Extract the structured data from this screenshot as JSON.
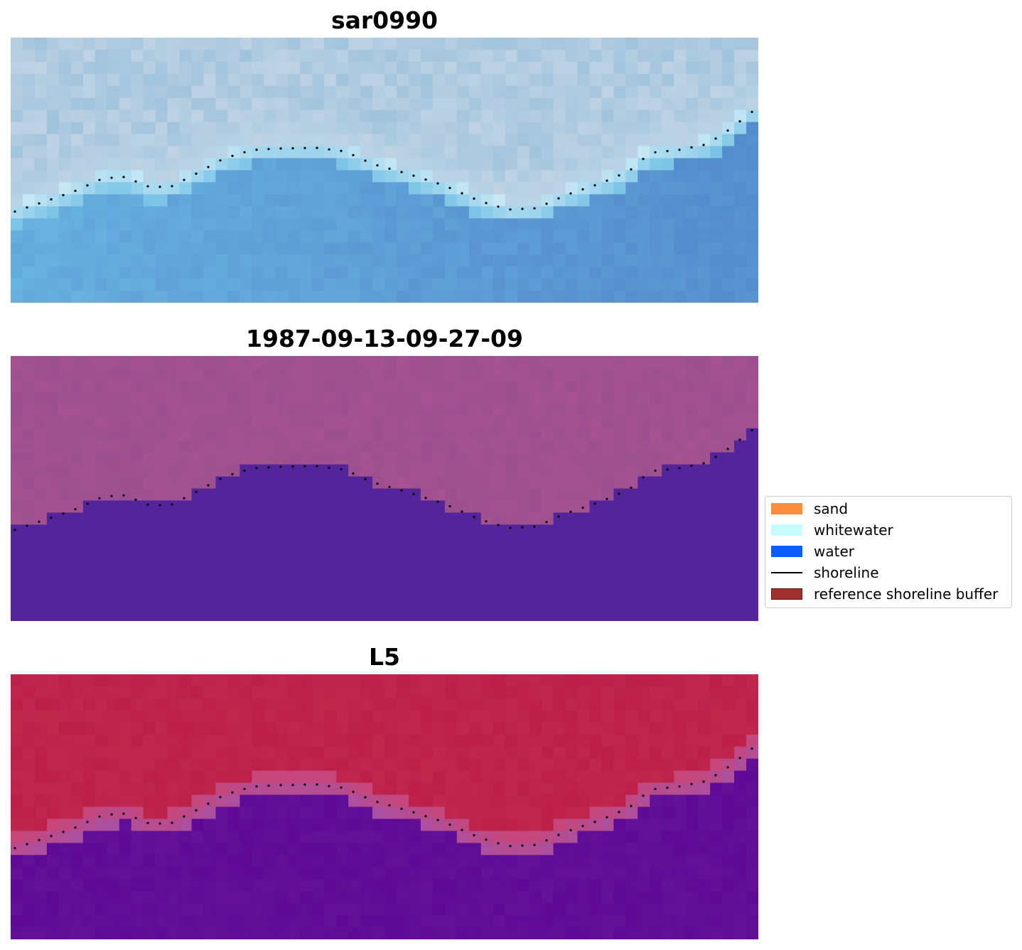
{
  "panels": [
    {
      "title": "sar0990",
      "scheme": "rgb"
    },
    {
      "title": "1987-09-13-09-27-09",
      "scheme": "class"
    },
    {
      "title": "L5",
      "scheme": "index"
    }
  ],
  "legend": {
    "items": [
      {
        "label": "sand",
        "color": "#ff8c3a",
        "kind": "patch"
      },
      {
        "label": "whitewater",
        "color": "#c8fcfc",
        "kind": "patch"
      },
      {
        "label": "water",
        "color": "#0a5cff",
        "kind": "patch"
      },
      {
        "label": "shoreline",
        "color": "#000000",
        "kind": "line"
      },
      {
        "label": "reference shoreline buffer",
        "color": "#9e3030",
        "kind": "patch"
      }
    ]
  },
  "colors": {
    "class_water": "#53249a",
    "class_land": "#a55192",
    "index_high": "#bc1f4a",
    "index_low": "#5e0a97",
    "shoreline_dots": "#000000"
  }
}
